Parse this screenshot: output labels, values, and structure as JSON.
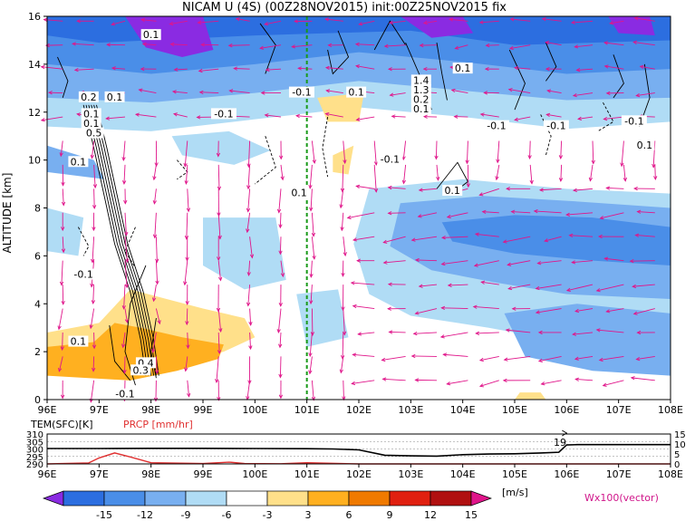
{
  "chart_data": [
    {
      "type": "heatmap",
      "title": "NICAM U (4S) (00Z28NOV2015) init:00Z25NOV2015 fix",
      "ylabel": "ALTITUDE [km]",
      "xlabel": "",
      "x_ticks": [
        "96E",
        "97E",
        "98E",
        "99E",
        "100E",
        "101E",
        "102E",
        "103E",
        "104E",
        "105E",
        "106E",
        "107E",
        "108E"
      ],
      "y_ticks": [
        "0",
        "2",
        "4",
        "6",
        "8",
        "10",
        "12",
        "14",
        "16"
      ],
      "xlim": [
        96,
        108
      ],
      "ylim": [
        0,
        16
      ],
      "reference_line_lon": 101,
      "contour_labels": [
        {
          "text": "0.1",
          "lon": 98.0,
          "alt": 15.2
        },
        {
          "text": "0.1",
          "lon": 104.0,
          "alt": 13.8
        },
        {
          "text": "0.2",
          "lon": 96.8,
          "alt": 12.6
        },
        {
          "text": "0.1",
          "lon": 97.3,
          "alt": 12.6
        },
        {
          "text": "0.1",
          "lon": 96.85,
          "alt": 11.9
        },
        {
          "text": "0.1",
          "lon": 96.85,
          "alt": 11.5
        },
        {
          "text": "0.5",
          "lon": 96.9,
          "alt": 11.1
        },
        {
          "text": "0.1",
          "lon": 96.6,
          "alt": 9.9
        },
        {
          "text": "-0.1",
          "lon": 99.4,
          "alt": 11.9
        },
        {
          "text": "-0.1",
          "lon": 100.9,
          "alt": 12.8
        },
        {
          "text": "0.1",
          "lon": 101.95,
          "alt": 12.8
        },
        {
          "text": "-0.1",
          "lon": 102.6,
          "alt": 10.0
        },
        {
          "text": "0.1",
          "lon": 100.85,
          "alt": 8.6
        },
        {
          "text": "-0.1",
          "lon": 104.65,
          "alt": 11.4
        },
        {
          "text": "-0.1",
          "lon": 105.8,
          "alt": 11.4
        },
        {
          "text": "-0.1",
          "lon": 107.3,
          "alt": 11.6
        },
        {
          "text": "0.1",
          "lon": 107.5,
          "alt": 10.6
        },
        {
          "text": "0.1",
          "lon": 103.8,
          "alt": 8.7
        },
        {
          "text": "-0.1",
          "lon": 96.7,
          "alt": 5.2
        },
        {
          "text": "0.4",
          "lon": 97.9,
          "alt": 1.5
        },
        {
          "text": "0.3",
          "lon": 97.8,
          "alt": 1.2
        },
        {
          "text": "-0.1",
          "lon": 97.5,
          "alt": 0.2
        },
        {
          "text": "0.1",
          "lon": 96.6,
          "alt": 2.4
        }
      ],
      "contour_label_stack": [
        {
          "text": "1.4",
          "lon": 103.2,
          "alt": 13.3
        },
        {
          "text": "1.3",
          "lon": 103.2,
          "alt": 12.9
        },
        {
          "text": "0.2",
          "lon": 103.2,
          "alt": 12.5
        },
        {
          "text": "0.1",
          "lon": 103.2,
          "alt": 12.1
        }
      ]
    },
    {
      "type": "line",
      "left_label": "TEM(SFC)[K]",
      "right_label": "PRCP [mm/hr]",
      "x_ticks": [
        "96E",
        "97E",
        "98E",
        "99E",
        "100E",
        "101E",
        "102E",
        "103E",
        "104E",
        "105E",
        "106E",
        "107E",
        "108E"
      ],
      "y_left_ticks": [
        "310",
        "305",
        "300",
        "295",
        "290"
      ],
      "y_right_ticks": [
        "15",
        "10",
        "5",
        "0"
      ],
      "y_left_range": [
        290,
        310
      ],
      "y_right_range": [
        0,
        15
      ],
      "point_label": "19",
      "series": [
        {
          "quantity": "TEM(SFC)",
          "x": [
            96,
            97,
            98,
            99,
            100,
            101,
            101.5,
            102,
            102.5,
            103,
            103.5,
            104,
            104.5,
            105,
            105.5,
            105.85,
            106,
            106.2,
            107,
            108
          ],
          "values": [
            300.3,
            300.3,
            300.4,
            300.4,
            300.3,
            300.2,
            300.0,
            299.4,
            295.8,
            295.4,
            295.2,
            296.2,
            296.6,
            296.8,
            297.3,
            297.8,
            302.7,
            302.9,
            302.9,
            302.9
          ]
        },
        {
          "quantity": "PRCP",
          "x": [
            96,
            96.8,
            97.0,
            97.3,
            97.6,
            98.0,
            99.0,
            99.5,
            99.8,
            100.5,
            101.0,
            102,
            103,
            104,
            105,
            106,
            107,
            108
          ],
          "values": [
            0,
            0.5,
            3.0,
            5.5,
            3.5,
            0.6,
            0.2,
            0.9,
            0.2,
            0.1,
            0.6,
            0,
            0,
            0,
            0,
            0,
            0,
            0
          ]
        }
      ]
    },
    {
      "type": "colorbar",
      "ticks": [
        "-15",
        "-12",
        "-9",
        "-6",
        "-3",
        "3",
        "6",
        "9",
        "12",
        "15"
      ],
      "unit": "[m/s]",
      "vector_label": "Wx100(vector)",
      "colors": [
        "#8a2be2",
        "#2c6ee0",
        "#4a8ee8",
        "#78aff0",
        "#b0dcf5",
        "#ffffff",
        "#ffe08a",
        "#ffb020",
        "#f07a00",
        "#e02010",
        "#b01010",
        "#e0158a"
      ]
    }
  ]
}
